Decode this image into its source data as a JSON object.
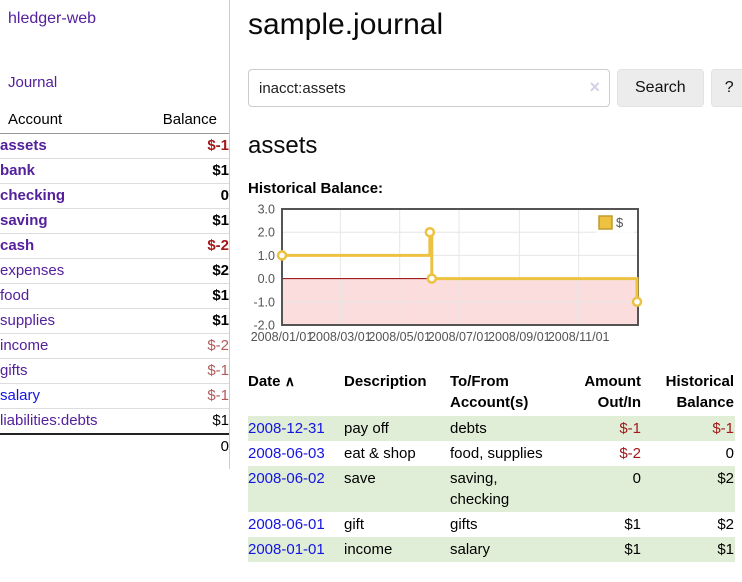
{
  "brand": "hledger-web",
  "nav": {
    "journal": "Journal"
  },
  "sidebar": {
    "account_header": "Account",
    "balance_header": "Balance",
    "accounts": [
      {
        "name": "assets",
        "balance": "$-1"
      },
      {
        "name": "bank",
        "balance": "$1"
      },
      {
        "name": "checking",
        "balance": "0"
      },
      {
        "name": "saving",
        "balance": "$1"
      },
      {
        "name": "cash",
        "balance": "$-2"
      },
      {
        "name": "expenses",
        "balance": "$2"
      },
      {
        "name": "food",
        "balance": "$1"
      },
      {
        "name": "supplies",
        "balance": "$1"
      },
      {
        "name": "income",
        "balance": "$-2"
      },
      {
        "name": "gifts",
        "balance": "$-1"
      },
      {
        "name": "salary",
        "balance": "$-1"
      },
      {
        "name": "liabilities:debts",
        "balance": "$1"
      }
    ],
    "total": "0"
  },
  "header": {
    "title": "sample.journal"
  },
  "search": {
    "value": "inacct:assets",
    "clear_icon": "×",
    "button_label": "Search",
    "help_label": "?"
  },
  "account_view": {
    "heading": "assets",
    "chart_title": "Historical Balance:"
  },
  "chart_data": {
    "type": "line",
    "step": true,
    "title": "Historical Balance of assets",
    "series": [
      {
        "name": "$",
        "color": "#EDC240",
        "points": [
          [
            "2008-01-01",
            1
          ],
          [
            "2008-06-01",
            2
          ],
          [
            "2008-06-03",
            0
          ],
          [
            "2008-12-31",
            -1
          ]
        ]
      }
    ],
    "x_range": [
      "2008-01-01",
      "2009-01-01"
    ],
    "x_ticks": [
      "2008/01/01",
      "2008/03/01",
      "2008/05/01",
      "2008/07/01",
      "2008/09/01",
      "2008/11/01"
    ],
    "y_ticks": [
      "3.0",
      "2.0",
      "1.0",
      "0.0",
      "-1.0",
      "-2.0"
    ],
    "ylim": [
      -2,
      3
    ],
    "grid": true,
    "negative_region_color": "#fbdddd",
    "zero_line_color": "#930000",
    "border_color": "#545454",
    "legend": {
      "position": "top-right",
      "label": "$"
    }
  },
  "register": {
    "headers": {
      "date": "Date",
      "sort_indicator": "∧",
      "description": "Description",
      "accounts": "To/From Account(s)",
      "amount": "Amount Out/In",
      "balance": "Historical Balance"
    },
    "rows": [
      {
        "date": "2008-12-31",
        "description": "pay off",
        "accounts": "debts",
        "amount": "$-1",
        "balance": "$-1"
      },
      {
        "date": "2008-06-03",
        "description": "eat & shop",
        "accounts": "food, supplies",
        "amount": "$-2",
        "balance": "0"
      },
      {
        "date": "2008-06-02",
        "description": "save",
        "accounts": "saving, checking",
        "amount": "0",
        "balance": "$2"
      },
      {
        "date": "2008-06-01",
        "description": "gift",
        "accounts": "gifts",
        "amount": "$1",
        "balance": "$2"
      },
      {
        "date": "2008-01-01",
        "description": "income",
        "accounts": "salary",
        "amount": "$1",
        "balance": "$1"
      }
    ]
  }
}
